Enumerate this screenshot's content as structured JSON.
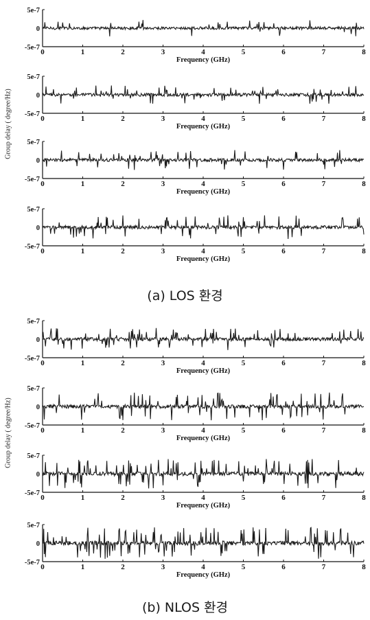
{
  "figure": {
    "caption_a": "(a) LOS 환경",
    "caption_b": "(b) NLOS 환경",
    "ylabel_a": "Group delay ( degree/Hz)",
    "ylabel_b": "Group delay ( degree/Hz)"
  },
  "chart_data": [
    {
      "type": "line",
      "group": "a",
      "title": "",
      "xlabel": "Frequency (GHz)",
      "ylabel": "",
      "xlim": [
        0,
        8
      ],
      "ylim": [
        -5e-07,
        5e-07
      ],
      "xticks": [
        "0",
        "1",
        "2",
        "3",
        "4",
        "5",
        "6",
        "7",
        "8"
      ],
      "yticks": [
        "5e-7",
        "0",
        "-5e-7"
      ],
      "density": 0.25,
      "amplitude": 0.45
    },
    {
      "type": "line",
      "group": "a",
      "title": "",
      "xlabel": "Frequency (GHz)",
      "ylabel": "",
      "xlim": [
        0,
        8
      ],
      "ylim": [
        -5e-07,
        5e-07
      ],
      "xticks": [
        "0",
        "1",
        "2",
        "3",
        "4",
        "5",
        "6",
        "7",
        "8"
      ],
      "yticks": [
        "5e-7",
        "0",
        "-5e-7"
      ],
      "density": 0.35,
      "amplitude": 0.5
    },
    {
      "type": "line",
      "group": "a",
      "title": "",
      "xlabel": "Frequency (GHz)",
      "ylabel": "",
      "xlim": [
        0,
        8
      ],
      "ylim": [
        -5e-07,
        5e-07
      ],
      "xticks": [
        "0",
        "1",
        "2",
        "3",
        "4",
        "5",
        "6",
        "7",
        "8"
      ],
      "yticks": [
        "5e-7",
        "0",
        "-5e-7"
      ],
      "density": 0.4,
      "amplitude": 0.55
    },
    {
      "type": "line",
      "group": "a",
      "title": "",
      "xlabel": "Frequency (GHz)",
      "ylabel": "",
      "xlim": [
        0,
        8
      ],
      "ylim": [
        -5e-07,
        5e-07
      ],
      "xticks": [
        "0",
        "1",
        "2",
        "3",
        "4",
        "5",
        "6",
        "7",
        "8"
      ],
      "yticks": [
        "5e-7",
        "0",
        "-5e-7"
      ],
      "density": 0.5,
      "amplitude": 0.65
    },
    {
      "type": "line",
      "group": "b",
      "title": "",
      "xlabel": "Frequency (GHz)",
      "ylabel": "",
      "xlim": [
        0,
        8
      ],
      "ylim": [
        -5e-07,
        5e-07
      ],
      "xticks": [
        "0",
        "1",
        "2",
        "3",
        "4",
        "5",
        "6",
        "7",
        "8"
      ],
      "yticks": [
        "5e-7",
        "0",
        "-5e-7"
      ],
      "density": 0.55,
      "amplitude": 0.6
    },
    {
      "type": "line",
      "group": "b",
      "title": "",
      "xlabel": "Frequency (GHz)",
      "ylabel": "",
      "xlim": [
        0,
        8
      ],
      "ylim": [
        -5e-07,
        5e-07
      ],
      "xticks": [
        "0",
        "1",
        "2",
        "3",
        "4",
        "5",
        "6",
        "7",
        "8"
      ],
      "yticks": [
        "5e-7",
        "0",
        "-5e-7"
      ],
      "density": 0.65,
      "amplitude": 0.75
    },
    {
      "type": "line",
      "group": "b",
      "title": "",
      "xlabel": "Frequency (GHz)",
      "ylabel": "",
      "xlim": [
        0,
        8
      ],
      "ylim": [
        -5e-07,
        5e-07
      ],
      "xticks": [
        "0",
        "1",
        "2",
        "3",
        "4",
        "5",
        "6",
        "7",
        "8"
      ],
      "yticks": [
        "5e-7",
        "0",
        "-5e-7"
      ],
      "density": 0.75,
      "amplitude": 0.8
    },
    {
      "type": "line",
      "group": "b",
      "title": "",
      "xlabel": "Frequency (GHz)",
      "ylabel": "",
      "xlim": [
        0,
        8
      ],
      "ylim": [
        -5e-07,
        5e-07
      ],
      "xticks": [
        "0",
        "1",
        "2",
        "3",
        "4",
        "5",
        "6",
        "7",
        "8"
      ],
      "yticks": [
        "5e-7",
        "0",
        "-5e-7"
      ],
      "density": 0.85,
      "amplitude": 0.85
    }
  ]
}
